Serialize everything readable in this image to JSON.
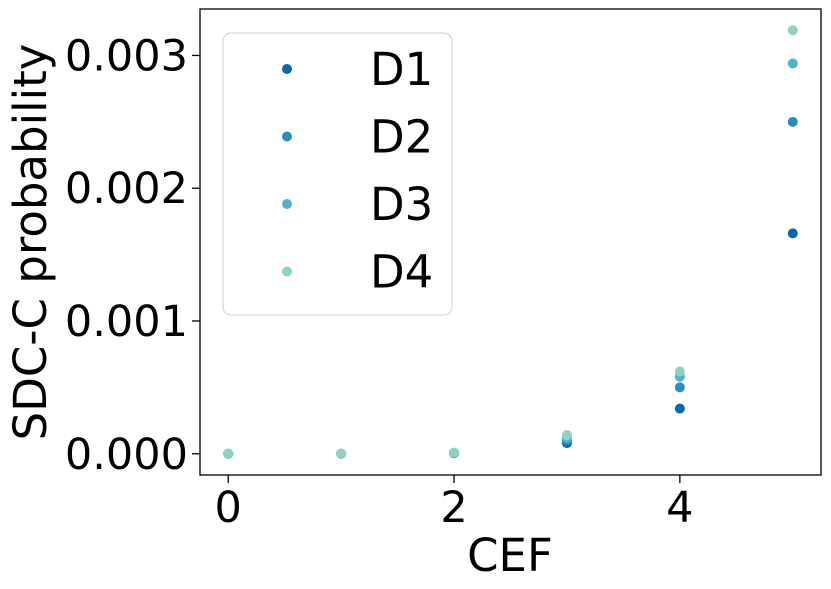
{
  "chart_data": {
    "type": "scatter",
    "xlabel": "CEF",
    "ylabel": "SDC-C probability",
    "xlim": [
      -0.25,
      5.25
    ],
    "ylim": [
      -0.00016,
      0.00335
    ],
    "xticks": [
      "0",
      "2",
      "4"
    ],
    "xtick_values": [
      0,
      2,
      4
    ],
    "yticks": [
      "0.000",
      "0.001",
      "0.002",
      "0.003"
    ],
    "ytick_values": [
      0,
      0.001,
      0.002,
      0.003
    ],
    "grid": false,
    "legend_position": "upper-left",
    "series": [
      {
        "name": "D1",
        "color": "#0868ac",
        "x": [
          0,
          1,
          2,
          3,
          4,
          5
        ],
        "y": [
          0,
          0,
          4e-06,
          8e-05,
          0.00034,
          0.00166
        ]
      },
      {
        "name": "D2",
        "color": "#2b8cbe",
        "x": [
          0,
          1,
          2,
          3,
          4,
          5
        ],
        "y": [
          0,
          0,
          5e-06,
          0.0001,
          0.0005,
          0.0025
        ]
      },
      {
        "name": "D3",
        "color": "#4eb3d3",
        "x": [
          0,
          1,
          2,
          3,
          4,
          5
        ],
        "y": [
          0,
          0,
          7e-06,
          0.00012,
          0.00058,
          0.00294
        ]
      },
      {
        "name": "D4",
        "color": "#8fd2bf",
        "x": [
          0,
          1,
          2,
          3,
          4,
          5
        ],
        "y": [
          0,
          0,
          9e-06,
          0.00014,
          0.00062,
          0.00319
        ]
      }
    ]
  }
}
